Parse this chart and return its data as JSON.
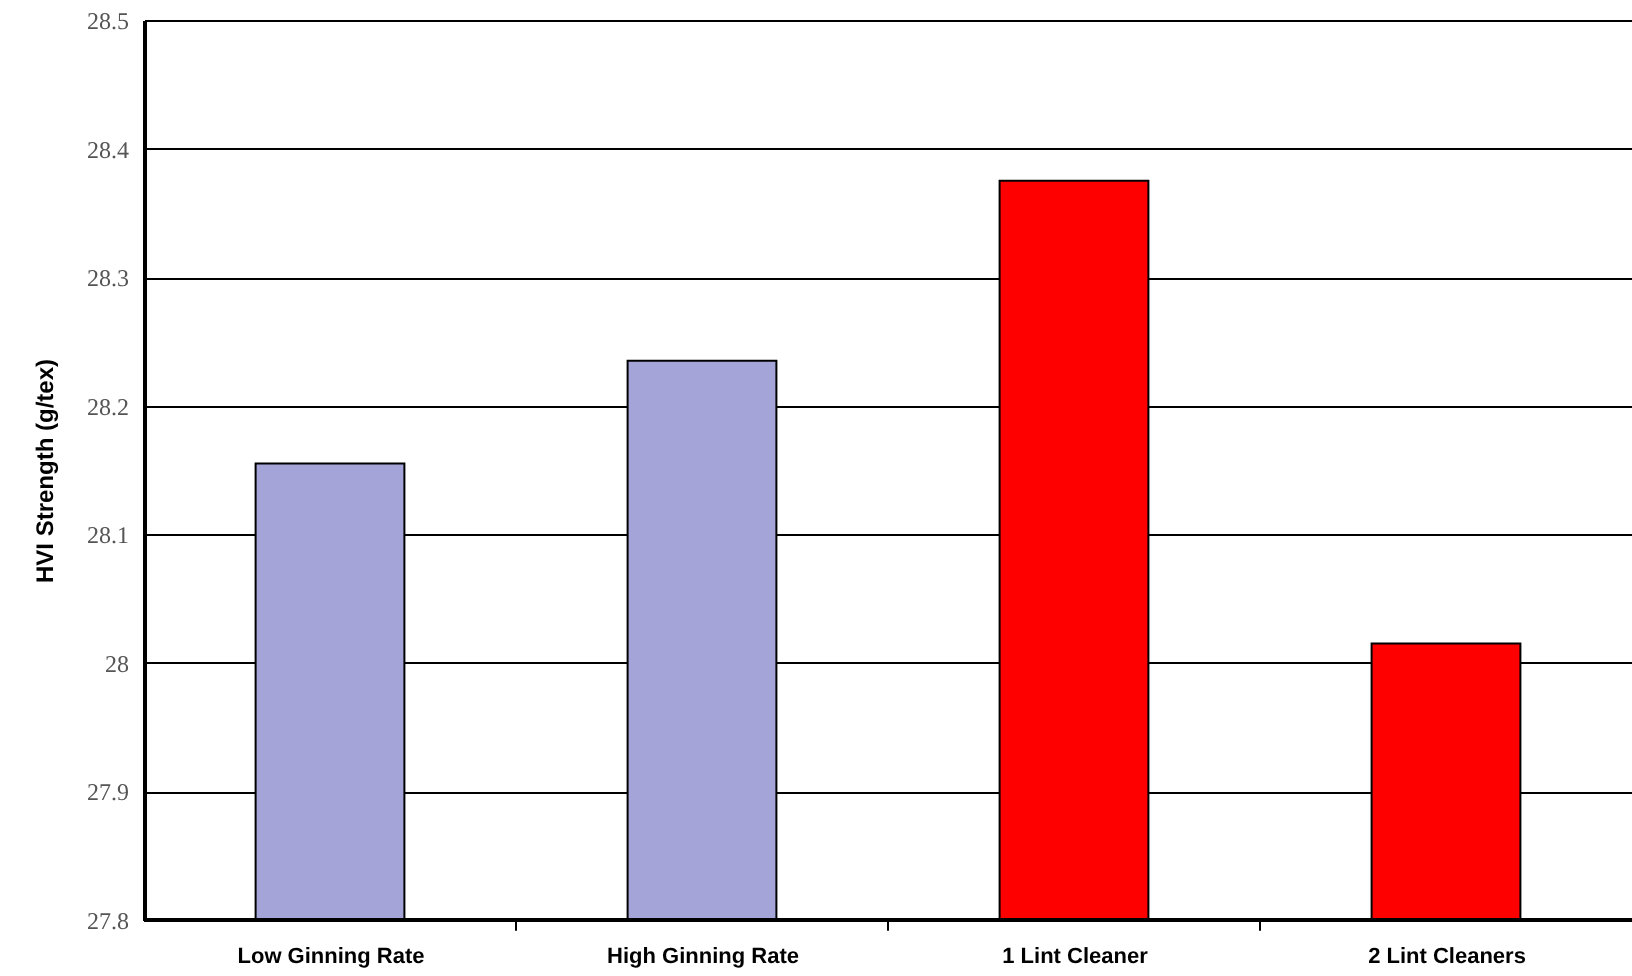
{
  "chart_data": {
    "type": "bar",
    "ylabel": "HVI Strength (g/tex)",
    "categories": [
      "Low Ginning Rate",
      "High Ginning Rate",
      "1 Lint Cleaner",
      "2 Lint Cleaners"
    ],
    "values": [
      28.155,
      28.235,
      28.375,
      28.015
    ],
    "colors": [
      "#a4a4d8",
      "#a4a4d8",
      "#ff0000",
      "#ff0000"
    ],
    "ylim": [
      27.8,
      28.5
    ],
    "yticks": [
      27.8,
      27.9,
      28,
      28.1,
      28.2,
      28.3,
      28.4,
      28.5
    ],
    "grid": "y"
  }
}
